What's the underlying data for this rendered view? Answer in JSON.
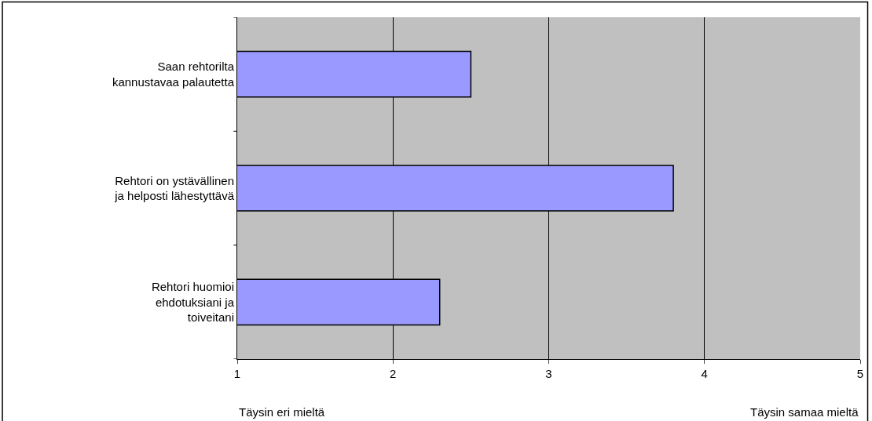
{
  "chart_data": {
    "type": "bar",
    "orientation": "horizontal",
    "categories": [
      "Saan rehtorilta kannustavaa palautetta",
      "Rehtori on ystävällinen ja helposti lähestyttävä",
      "Rehtori huomioi ehdotuksiani ja toiveitani"
    ],
    "values": [
      2.5,
      3.8,
      2.3
    ],
    "color": "#9999ff",
    "xlim": [
      1,
      5
    ],
    "xticks": [
      1,
      2,
      3,
      4,
      5
    ],
    "grid": "x",
    "annotations": [
      "Täysin eri mieltä",
      "Täysin samaa mieltä"
    ]
  }
}
